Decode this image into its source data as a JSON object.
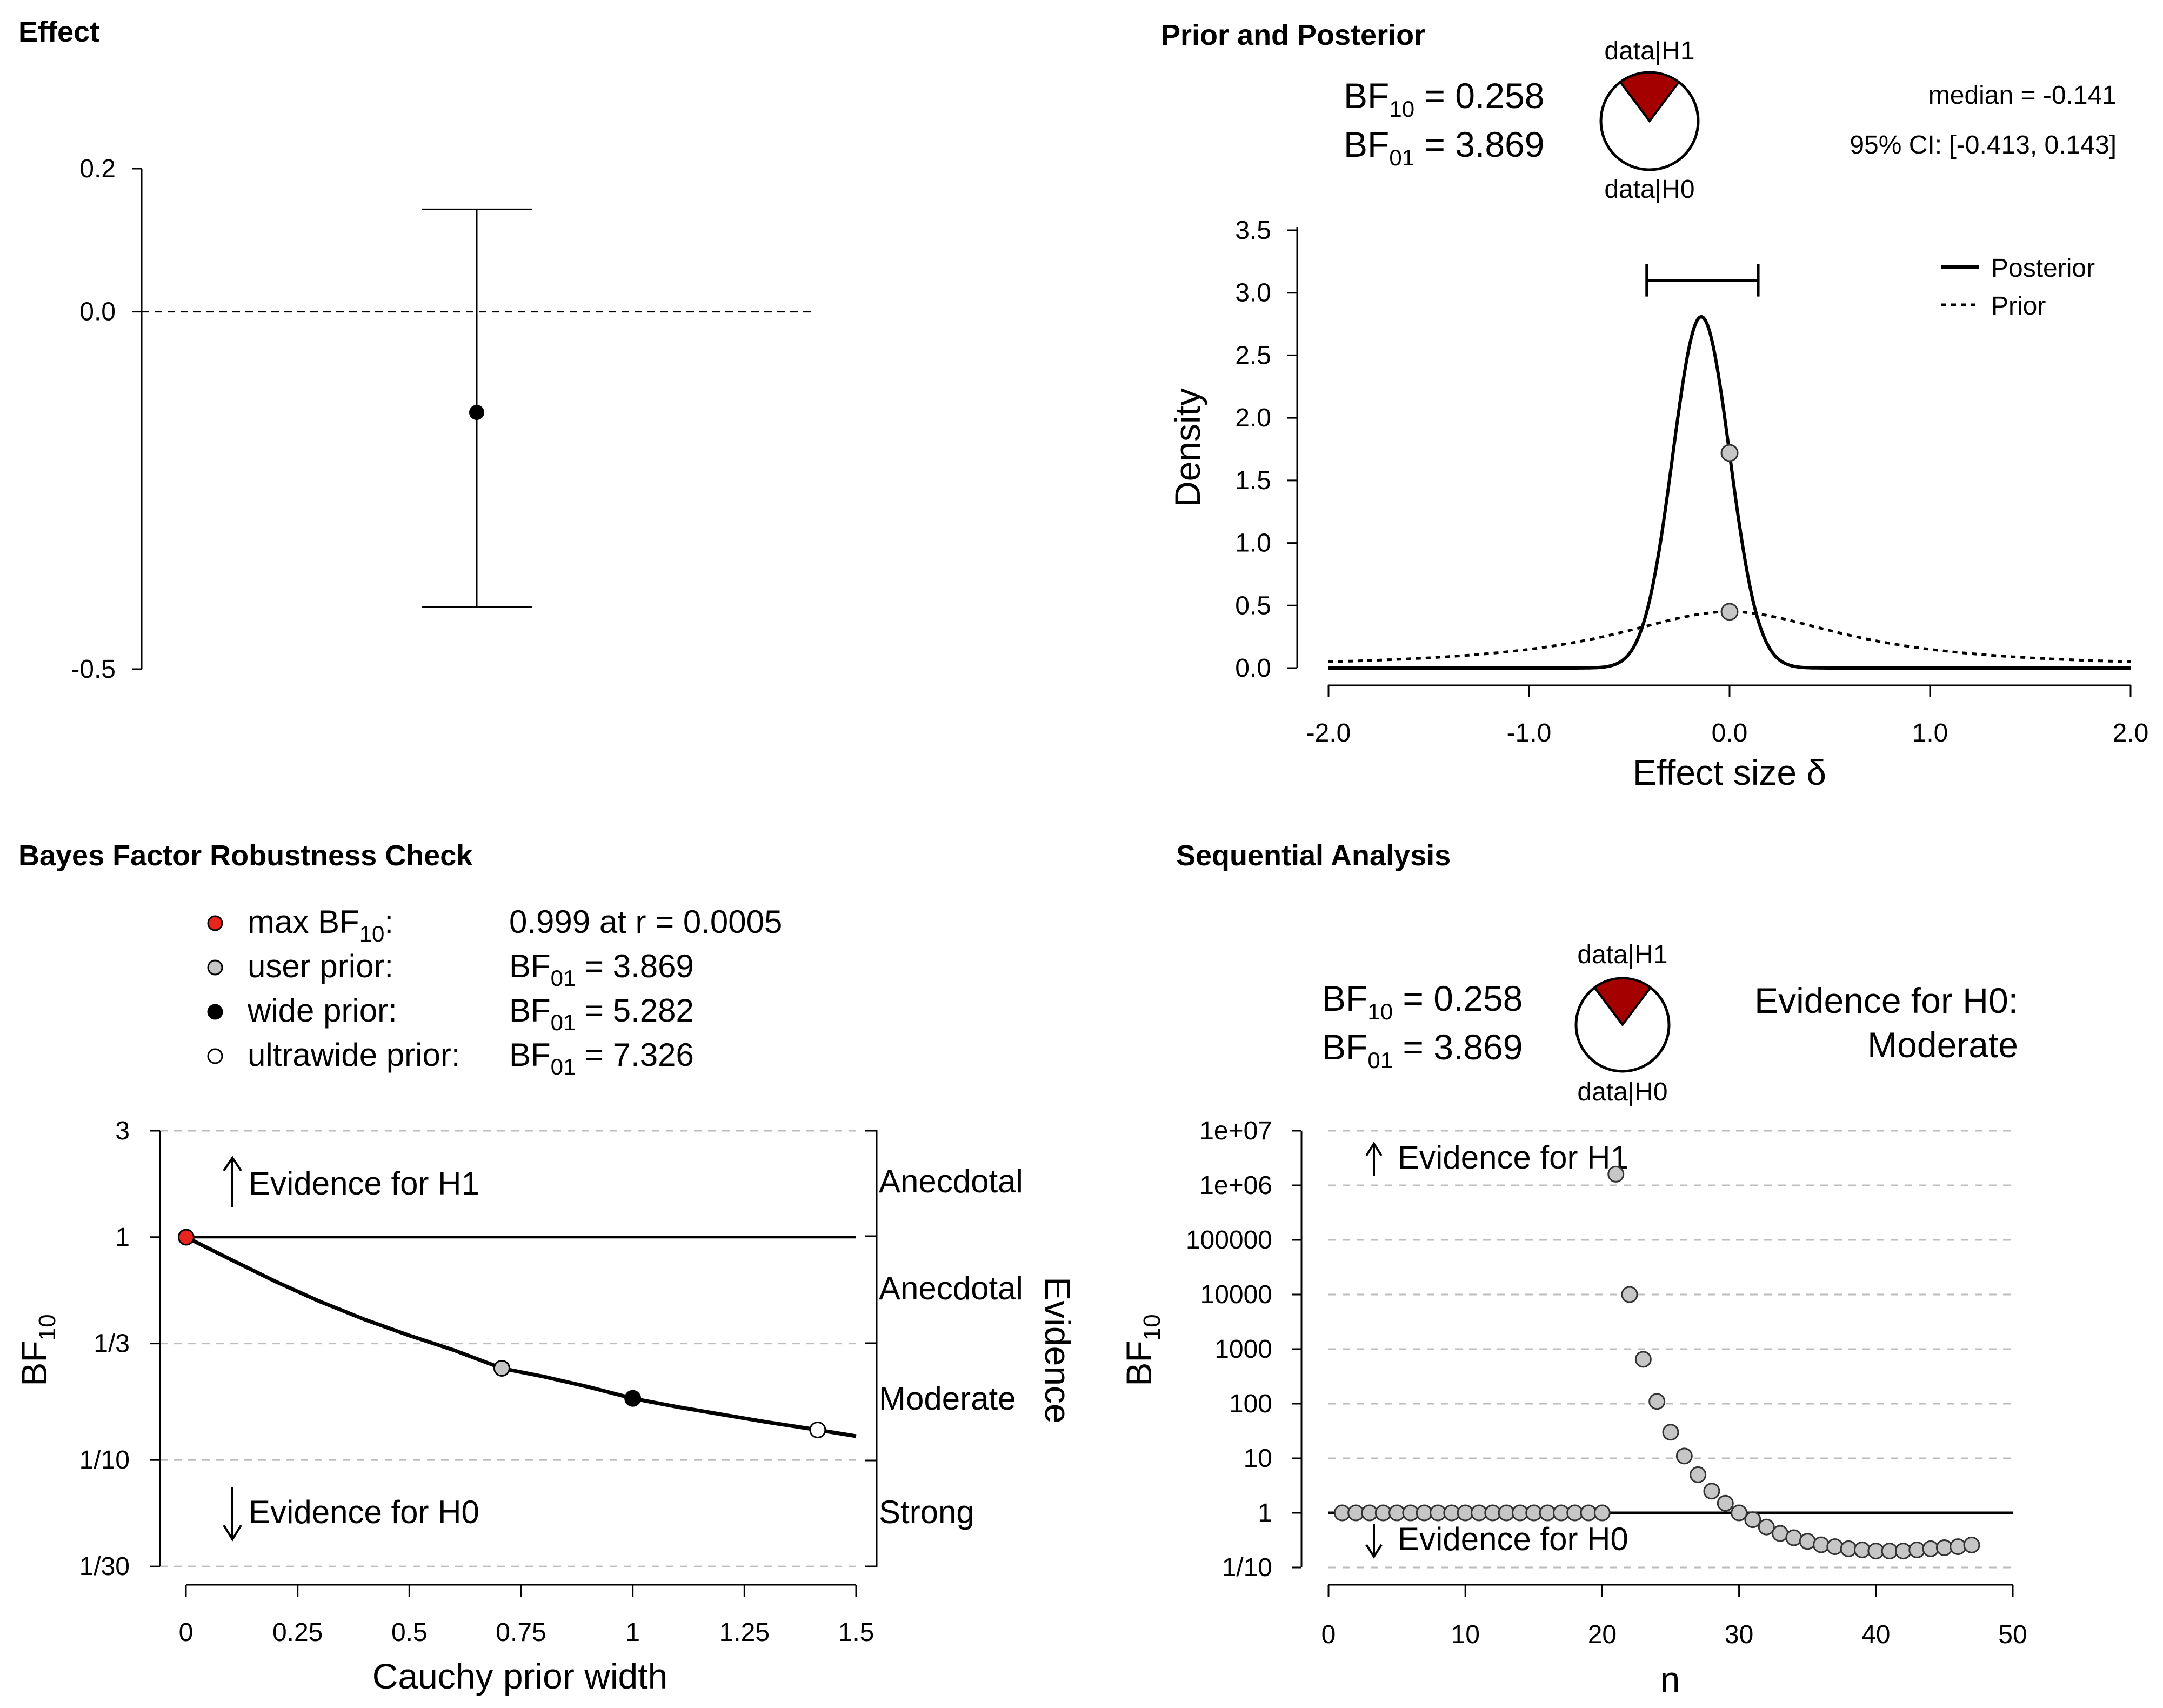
{
  "colors": {
    "red": "#a50000",
    "red_point": "#e8251c",
    "gray_point": "#c6c6c6"
  },
  "effect": {
    "title": "Effect",
    "yticks": [
      0.2,
      0.0,
      -0.5
    ],
    "ytick_labels": [
      "0.2",
      "0.0",
      "-0.5"
    ],
    "estimate": -0.141,
    "ci_lower": -0.413,
    "ci_upper": 0.143,
    "ylim": [
      -0.5,
      0.2
    ]
  },
  "prior_posterior": {
    "title": "Prior and Posterior",
    "bf10_label": "BF",
    "bf10_sub": "10",
    "bf10_value": " = 0.258",
    "bf01_label": "BF",
    "bf01_sub": "01",
    "bf01_value": " = 3.869",
    "pie_top": "data|H1",
    "pie_bottom": "data|H0",
    "pie_h1_fraction": 0.205,
    "median_text": "median = -0.141",
    "ci_text": "95% CI: [-0.413, 0.143]",
    "ylabel": "Density",
    "xlabel": "Effect size δ",
    "legend": [
      "Posterior",
      "Prior"
    ],
    "xtick_labels": [
      "-2.0",
      "-1.0",
      "0.0",
      "1.0",
      "2.0"
    ],
    "ytick_labels": [
      "0.0",
      "0.5",
      "1.0",
      "1.5",
      "2.0",
      "2.5",
      "3.0",
      "3.5"
    ]
  },
  "robustness": {
    "title": "Bayes Factor Robustness Check",
    "legend": [
      {
        "label": "max BF",
        "sub": "10",
        "suffix": ":",
        "value": "0.999 at r = 0.0005",
        "vsub": ""
      },
      {
        "label": "user prior:",
        "sub": "",
        "suffix": "",
        "value": "BF",
        "vsub": "01",
        "vrest": " = 3.869"
      },
      {
        "label": "wide prior:",
        "sub": "",
        "suffix": "",
        "value": "BF",
        "vsub": "01",
        "vrest": " = 5.282"
      },
      {
        "label": "ultrawide prior:",
        "sub": "",
        "suffix": "",
        "value": "BF",
        "vsub": "01",
        "vrest": " = 7.326"
      }
    ],
    "ylabel": "BF",
    "ylabel_sub": "10",
    "xlabel": "Cauchy prior width",
    "ytick_labels": [
      "3",
      "1",
      "1/3",
      "1/10",
      "1/30"
    ],
    "xtick_labels": [
      "0",
      "0.25",
      "0.5",
      "0.75",
      "1",
      "1.25",
      "1.5"
    ],
    "evidence_h1": "Evidence for H1",
    "evidence_h0": "Evidence for H0",
    "evidence_axis": "Evidence",
    "categories": [
      "Anecdotal",
      "Anecdotal",
      "Moderate",
      "Strong"
    ]
  },
  "sequential": {
    "title": "Sequential Analysis",
    "bf10_label": "BF",
    "bf10_sub": "10",
    "bf10_value": " = 0.258",
    "bf01_label": "BF",
    "bf01_sub": "01",
    "bf01_value": " = 3.869",
    "pie_top": "data|H1",
    "pie_bottom": "data|H0",
    "evidence_title": "Evidence for H0:",
    "evidence_level": "Moderate",
    "ylabel": "BF",
    "ylabel_sub": "10",
    "xlabel": "n",
    "ytick_labels": [
      "1e+07",
      "1e+06",
      "100000",
      "10000",
      "1000",
      "100",
      "10",
      "1",
      "1/10"
    ],
    "xtick_labels": [
      "0",
      "10",
      "20",
      "30",
      "40",
      "50"
    ],
    "evidence_h1": "Evidence for H1",
    "evidence_h0": "Evidence for H0"
  },
  "chart_data": [
    {
      "type": "errorbar",
      "title": "Effect",
      "estimate": -0.141,
      "lower": -0.413,
      "upper": 0.143,
      "reference_line": 0.0,
      "ylim": [
        -0.5,
        0.2
      ]
    },
    {
      "type": "line",
      "title": "Prior and Posterior",
      "xlabel": "Effect size δ",
      "ylabel": "Density",
      "xlim": [
        -2,
        2
      ],
      "ylim": [
        0,
        3.5
      ],
      "series": [
        {
          "name": "Posterior",
          "style": "solid",
          "distribution": "normal",
          "mean": -0.141,
          "sd": 0.142
        },
        {
          "name": "Prior",
          "style": "dotted",
          "distribution": "cauchy",
          "location": 0,
          "scale": 0.707
        }
      ],
      "points": [
        {
          "x": 0,
          "y": 1.72,
          "label": "posterior at 0"
        },
        {
          "x": 0,
          "y": 0.45,
          "label": "prior at 0"
        }
      ],
      "ci_bar": [
        -0.413,
        0.143
      ],
      "ci_bar_height": 3.1
    },
    {
      "type": "line",
      "title": "Bayes Factor Robustness Check",
      "xlabel": "Cauchy prior width",
      "ylabel": "BF10",
      "xlim": [
        0,
        1.5
      ],
      "y_scale": "log",
      "y_ticks": [
        3,
        1,
        0.3333,
        0.1,
        0.0333
      ],
      "curve_x": [
        0.0005,
        0.1,
        0.2,
        0.3,
        0.4,
        0.5,
        0.6,
        0.707,
        0.8,
        0.9,
        1.0,
        1.1,
        1.2,
        1.3,
        1.414,
        1.5
      ],
      "curve_bf10": [
        0.999,
        0.794,
        0.633,
        0.514,
        0.427,
        0.362,
        0.311,
        0.258,
        0.237,
        0.213,
        0.189,
        0.173,
        0.16,
        0.148,
        0.1365,
        0.128
      ],
      "points": [
        {
          "name": "max BF10",
          "x": 0.0005,
          "bf10": 0.999
        },
        {
          "name": "user prior",
          "x": 0.707,
          "bf10": 0.258
        },
        {
          "name": "wide prior",
          "x": 1.0,
          "bf10": 0.189
        },
        {
          "name": "ultrawide prior",
          "x": 1.414,
          "bf10": 0.1365
        }
      ]
    },
    {
      "type": "scatter",
      "title": "Sequential Analysis",
      "xlabel": "n",
      "ylabel": "BF10",
      "xlim": [
        0,
        50
      ],
      "y_scale": "log",
      "y_ticks": [
        10000000,
        1000000,
        100000,
        10000,
        1000,
        100,
        10,
        1,
        0.1
      ],
      "n": [
        1,
        2,
        3,
        4,
        5,
        6,
        7,
        8,
        9,
        10,
        11,
        12,
        13,
        14,
        15,
        16,
        17,
        18,
        19,
        20,
        21,
        22,
        23,
        24,
        25,
        26,
        27,
        28,
        29,
        30,
        31,
        32,
        33,
        34,
        35,
        36,
        37,
        38,
        39,
        40,
        41,
        42,
        43,
        44,
        45,
        46,
        47
      ],
      "bf10": [
        1,
        1,
        1,
        1,
        1,
        1,
        1,
        1,
        1,
        1,
        1,
        1,
        1,
        1,
        1,
        1,
        1,
        1,
        1,
        1,
        1600000,
        10000,
        650,
        110,
        30,
        11,
        5,
        2.5,
        1.5,
        1.0,
        0.75,
        0.55,
        0.42,
        0.35,
        0.3,
        0.26,
        0.24,
        0.22,
        0.21,
        0.2,
        0.2,
        0.2,
        0.21,
        0.22,
        0.23,
        0.24,
        0.258
      ]
    }
  ]
}
